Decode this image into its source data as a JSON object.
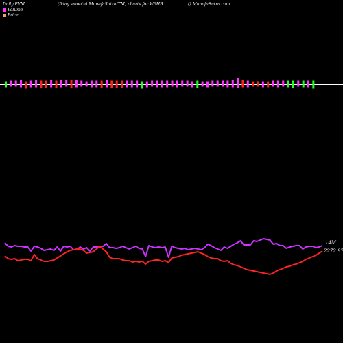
{
  "header": {
    "left": "Daily PVM",
    "center": "(5day smooth) MunafaSutra(TM) charts for W6HB",
    "right": "() MunafaSutra.com"
  },
  "legend": [
    {
      "label": "Volume",
      "color": "#ff33ff"
    },
    {
      "label": "Price",
      "color": "#ff9966"
    }
  ],
  "colors": {
    "background": "#000000",
    "volume_up": "#ff33ff",
    "volume_down_red": "#ff2222",
    "volume_down_green": "#22ff22",
    "volume_line": "#cc33ff",
    "price_line": "#ff2222",
    "baseline": "#ffffff"
  },
  "labels": {
    "volume_value": "14M",
    "price_value": "2272.97"
  },
  "chart_data": {
    "type": "line",
    "title": "Daily PVM",
    "bars": [
      {
        "up": 5,
        "down": 4,
        "c": "g"
      },
      {
        "up": 6,
        "down": 3,
        "c": "m"
      },
      {
        "up": 6,
        "down": 3,
        "c": "m"
      },
      {
        "up": 7,
        "down": 4,
        "c": "m"
      },
      {
        "up": 5,
        "down": 6,
        "c": "r"
      },
      {
        "up": 6,
        "down": 4,
        "c": "m"
      },
      {
        "up": 7,
        "down": 4,
        "c": "m"
      },
      {
        "up": 6,
        "down": 5,
        "c": "r"
      },
      {
        "up": 6,
        "down": 5,
        "c": "r"
      },
      {
        "up": 7,
        "down": 4,
        "c": "m"
      },
      {
        "up": 6,
        "down": 5,
        "c": "r"
      },
      {
        "up": 7,
        "down": 4,
        "c": "m"
      },
      {
        "up": 7,
        "down": 3,
        "c": "m"
      },
      {
        "up": 7,
        "down": 5,
        "c": "r"
      },
      {
        "up": 7,
        "down": 4,
        "c": "m"
      },
      {
        "up": 6,
        "down": 3,
        "c": "m"
      },
      {
        "up": 5,
        "down": 3,
        "c": "m"
      },
      {
        "up": 6,
        "down": 4,
        "c": "m"
      },
      {
        "up": 6,
        "down": 4,
        "c": "m"
      },
      {
        "up": 6,
        "down": 5,
        "c": "r"
      },
      {
        "up": 7,
        "down": 4,
        "c": "m"
      },
      {
        "up": 6,
        "down": 5,
        "c": "r"
      },
      {
        "up": 6,
        "down": 5,
        "c": "r"
      },
      {
        "up": 6,
        "down": 5,
        "c": "r"
      },
      {
        "up": 6,
        "down": 4,
        "c": "m"
      },
      {
        "up": 6,
        "down": 4,
        "c": "m"
      },
      {
        "up": 6,
        "down": 4,
        "c": "m"
      },
      {
        "up": 5,
        "down": 6,
        "c": "g"
      },
      {
        "up": 5,
        "down": 4,
        "c": "m"
      },
      {
        "up": 6,
        "down": 3,
        "c": "m"
      },
      {
        "up": 6,
        "down": 4,
        "c": "m"
      },
      {
        "up": 6,
        "down": 4,
        "c": "m"
      },
      {
        "up": 6,
        "down": 4,
        "c": "m"
      },
      {
        "up": 6,
        "down": 3,
        "c": "m"
      },
      {
        "up": 6,
        "down": 4,
        "c": "m"
      },
      {
        "up": 6,
        "down": 3,
        "c": "m"
      },
      {
        "up": 6,
        "down": 3,
        "c": "m"
      },
      {
        "up": 5,
        "down": 4,
        "c": "m"
      },
      {
        "up": 6,
        "down": 5,
        "c": "g"
      },
      {
        "up": 5,
        "down": 3,
        "c": "m"
      },
      {
        "up": 5,
        "down": 4,
        "c": "m"
      },
      {
        "up": 6,
        "down": 3,
        "c": "m"
      },
      {
        "up": 6,
        "down": 3,
        "c": "m"
      },
      {
        "up": 6,
        "down": 3,
        "c": "m"
      },
      {
        "up": 6,
        "down": 4,
        "c": "m"
      },
      {
        "up": 7,
        "down": 4,
        "c": "m"
      },
      {
        "up": 10,
        "down": 5,
        "c": "m"
      },
      {
        "up": 7,
        "down": 4,
        "c": "r"
      },
      {
        "up": 6,
        "down": 4,
        "c": "m"
      },
      {
        "up": 5,
        "down": 3,
        "c": "r"
      },
      {
        "up": 5,
        "down": 3,
        "c": "r"
      },
      {
        "up": 5,
        "down": 4,
        "c": "m"
      },
      {
        "up": 5,
        "down": 4,
        "c": "r"
      },
      {
        "up": 6,
        "down": 3,
        "c": "m"
      },
      {
        "up": 6,
        "down": 4,
        "c": "m"
      },
      {
        "up": 6,
        "down": 3,
        "c": "m"
      },
      {
        "up": 6,
        "down": 4,
        "c": "g"
      },
      {
        "up": 6,
        "down": 5,
        "c": "g"
      },
      {
        "up": 6,
        "down": 3,
        "c": "m"
      },
      {
        "up": 6,
        "down": 4,
        "c": "g"
      },
      {
        "up": 6,
        "down": 4,
        "c": "m"
      },
      {
        "up": 6,
        "down": 6,
        "c": "g"
      }
    ],
    "volume_line": [
      12,
      7,
      6,
      8,
      7,
      7,
      6,
      6,
      0,
      7,
      6,
      4,
      1,
      2,
      3,
      1,
      6,
      0,
      7,
      6,
      7,
      2,
      2,
      6,
      3,
      5,
      0,
      6,
      6,
      6,
      7,
      11,
      5,
      5,
      4,
      5,
      7,
      5,
      3,
      5,
      7,
      4,
      3,
      -8,
      8,
      6,
      5,
      6,
      5,
      6,
      -9,
      7,
      5,
      4,
      3,
      4,
      2,
      3,
      4,
      3,
      2,
      5,
      10,
      8,
      5,
      3,
      1,
      6,
      4,
      7,
      10,
      12,
      15,
      9,
      9,
      9,
      15,
      14,
      16,
      18,
      17,
      16,
      10,
      11,
      8,
      8,
      4,
      6,
      7,
      8,
      8,
      3,
      6,
      7,
      7,
      5,
      6,
      8
    ],
    "price_line": [
      10,
      6,
      5,
      6,
      3,
      4,
      5,
      5,
      3,
      12,
      6,
      4,
      2,
      2,
      3,
      4,
      7,
      10,
      13,
      16,
      18,
      19,
      20,
      20,
      18,
      14,
      15,
      16,
      20,
      24,
      20,
      16,
      8,
      6,
      6,
      6,
      4,
      3,
      3,
      1,
      2,
      1,
      2,
      -2,
      2,
      3,
      4,
      4,
      2,
      3,
      0,
      7,
      8,
      9,
      11,
      12,
      13,
      14,
      15,
      16,
      14,
      12,
      9,
      7,
      6,
      6,
      3,
      2,
      3,
      -1,
      -3,
      -4,
      -6,
      -8,
      -10,
      -11,
      -12,
      -13,
      -14,
      -15,
      -16,
      -17,
      -15,
      -12,
      -10,
      -8,
      -6,
      -5,
      -3,
      -2,
      0,
      2,
      5,
      7,
      9,
      11,
      14,
      17
    ]
  }
}
